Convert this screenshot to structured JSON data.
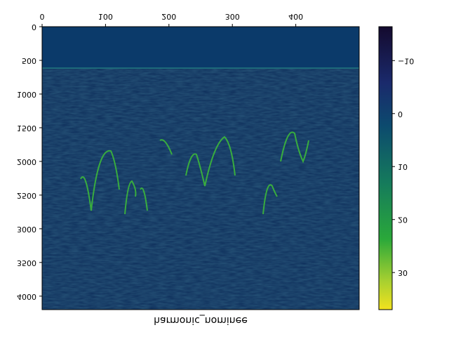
{
  "chart_data": {
    "type": "heatmap",
    "xlabel": "harmonic_nominee",
    "xlim": [
      0,
      500
    ],
    "xticks": [
      0,
      100,
      200,
      300,
      400
    ],
    "ylim": [
      0,
      4200
    ],
    "yticks": [
      0,
      500,
      1000,
      1500,
      2000,
      2500,
      3000,
      3500,
      4000
    ],
    "colorbar": {
      "lim": [
        -16.4,
        37
      ],
      "ticks": [
        {
          "value": -10,
          "label": "−10"
        },
        0,
        10,
        20,
        30
      ]
    }
  }
}
